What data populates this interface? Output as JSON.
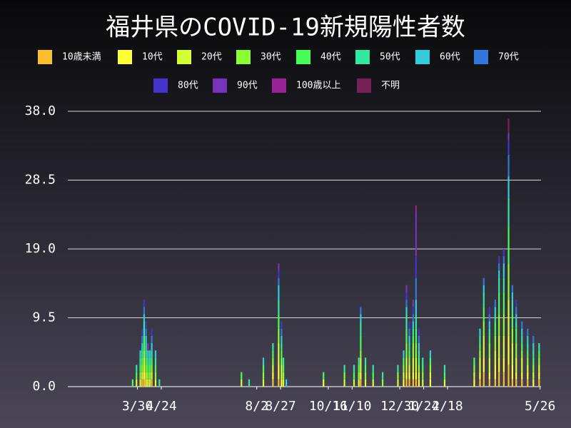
{
  "chart_data": {
    "type": "stacked_bar",
    "title": "福井県のCOVID-19新規陽性者数",
    "x": [
      68,
      72,
      76,
      78,
      80,
      82,
      84,
      86,
      88,
      92,
      96,
      182,
      190,
      205,
      215,
      221,
      224,
      226,
      229,
      268,
      290,
      300,
      305,
      307,
      312,
      320,
      330,
      346,
      352,
      355,
      358,
      362,
      365,
      368,
      372,
      380,
      395,
      426,
      432,
      436,
      442,
      448,
      452,
      457,
      462,
      466,
      470,
      476,
      482,
      488,
      494
    ],
    "xlim": [
      0,
      496
    ],
    "xticks": [
      {
        "value": 73,
        "label": "3/30"
      },
      {
        "value": 98,
        "label": "4/24"
      },
      {
        "value": 198,
        "label": "8/2"
      },
      {
        "value": 223,
        "label": "8/27"
      },
      {
        "value": 273,
        "label": "10/16"
      },
      {
        "value": 298,
        "label": "11/10"
      },
      {
        "value": 348,
        "label": "12/30"
      },
      {
        "value": 373,
        "label": "1/24"
      },
      {
        "value": 398,
        "label": "2/18"
      },
      {
        "value": 495,
        "label": "5/26"
      }
    ],
    "ylim": [
      0,
      38
    ],
    "yticks": [
      {
        "value": 0,
        "label": "0.0"
      },
      9.5,
      {
        "value": 19,
        "label": "19.0"
      },
      28.5,
      {
        "value": 38,
        "label": "38.0"
      }
    ],
    "grid": true,
    "series": [
      {
        "name": "10歳未満",
        "color": "#fbbf2c",
        "values": [
          0,
          0,
          0,
          1,
          1,
          0,
          0,
          0,
          1,
          0,
          0,
          0,
          0,
          0,
          1,
          1,
          0,
          0,
          0,
          0,
          0,
          0,
          0,
          1,
          0,
          0,
          0,
          0,
          0,
          1,
          1,
          1,
          1,
          0,
          0,
          0,
          0,
          0,
          1,
          2,
          1,
          1,
          2,
          2,
          3,
          1,
          1,
          1,
          1,
          0,
          1
        ]
      },
      {
        "name": "10代",
        "color": "#ffff33",
        "values": [
          0,
          0,
          0,
          0,
          1,
          1,
          0,
          0,
          0,
          0,
          0,
          0,
          0,
          0,
          1,
          2,
          1,
          0,
          0,
          1,
          0,
          0,
          0,
          1,
          0,
          0,
          0,
          0,
          1,
          1,
          1,
          1,
          1,
          1,
          0,
          1,
          0,
          1,
          1,
          2,
          1,
          2,
          2,
          2,
          4,
          2,
          1,
          1,
          1,
          1,
          1
        ]
      },
      {
        "name": "20代",
        "color": "#d4ff33",
        "values": [
          0,
          1,
          1,
          1,
          2,
          1,
          1,
          1,
          1,
          1,
          0,
          1,
          0,
          1,
          1,
          3,
          2,
          1,
          0,
          0,
          1,
          1,
          1,
          2,
          1,
          1,
          0,
          1,
          1,
          2,
          1,
          2,
          2,
          1,
          1,
          1,
          1,
          1,
          2,
          3,
          2,
          2,
          3,
          3,
          5,
          3,
          2,
          2,
          1,
          1,
          1
        ]
      },
      {
        "name": "30代",
        "color": "#88ff33",
        "values": [
          0,
          0,
          1,
          1,
          1,
          1,
          1,
          1,
          1,
          1,
          0,
          0,
          0,
          1,
          1,
          2,
          1,
          1,
          0,
          0,
          1,
          0,
          1,
          1,
          1,
          0,
          1,
          1,
          1,
          2,
          1,
          2,
          2,
          1,
          1,
          1,
          0,
          1,
          1,
          2,
          2,
          2,
          3,
          3,
          5,
          2,
          2,
          1,
          1,
          1,
          1
        ]
      },
      {
        "name": "40代",
        "color": "#44ff55",
        "values": [
          1,
          1,
          1,
          1,
          2,
          1,
          1,
          1,
          1,
          1,
          0,
          1,
          0,
          1,
          1,
          2,
          1,
          1,
          0,
          1,
          0,
          1,
          1,
          2,
          1,
          1,
          0,
          0,
          1,
          2,
          1,
          1,
          2,
          1,
          1,
          1,
          1,
          1,
          1,
          2,
          1,
          2,
          3,
          3,
          5,
          2,
          2,
          1,
          1,
          1,
          1
        ]
      },
      {
        "name": "50代",
        "color": "#33e8a0",
        "values": [
          0,
          1,
          1,
          1,
          2,
          2,
          1,
          1,
          1,
          1,
          1,
          0,
          1,
          0,
          1,
          2,
          1,
          1,
          0,
          0,
          1,
          1,
          1,
          2,
          1,
          1,
          1,
          1,
          0,
          2,
          1,
          1,
          2,
          1,
          1,
          0,
          1,
          0,
          1,
          2,
          1,
          1,
          2,
          2,
          4,
          2,
          1,
          1,
          1,
          1,
          1
        ]
      },
      {
        "name": "60代",
        "color": "#33ccdd",
        "values": [
          0,
          0,
          1,
          1,
          1,
          1,
          1,
          1,
          1,
          1,
          0,
          0,
          0,
          1,
          0,
          2,
          1,
          0,
          1,
          0,
          0,
          0,
          0,
          1,
          0,
          0,
          0,
          0,
          1,
          1,
          1,
          1,
          2,
          1,
          0,
          1,
          0,
          0,
          1,
          1,
          1,
          1,
          1,
          2,
          3,
          1,
          1,
          1,
          1,
          1,
          0
        ]
      },
      {
        "name": "70代",
        "color": "#3377dd",
        "values": [
          0,
          0,
          0,
          1,
          1,
          1,
          0,
          0,
          1,
          0,
          0,
          0,
          0,
          0,
          0,
          1,
          1,
          0,
          0,
          0,
          0,
          0,
          0,
          1,
          0,
          0,
          0,
          0,
          0,
          1,
          1,
          1,
          3,
          1,
          0,
          0,
          0,
          0,
          0,
          1,
          1,
          1,
          1,
          1,
          3,
          1,
          1,
          1,
          1,
          1,
          0
        ]
      },
      {
        "name": "80代",
        "color": "#4433cc",
        "values": [
          0,
          0,
          0,
          1,
          1,
          1,
          0,
          0,
          1,
          0,
          0,
          0,
          0,
          0,
          0,
          1,
          1,
          0,
          0,
          0,
          0,
          0,
          0,
          0,
          0,
          0,
          0,
          0,
          0,
          1,
          1,
          1,
          3,
          1,
          0,
          0,
          0,
          0,
          0,
          0,
          1,
          0,
          1,
          1,
          2,
          0,
          1,
          0,
          0,
          0,
          0
        ]
      },
      {
        "name": "90代",
        "color": "#7733bb",
        "values": [
          0,
          0,
          0,
          0,
          0,
          0,
          1,
          0,
          0,
          0,
          0,
          0,
          0,
          0,
          0,
          1,
          0,
          0,
          0,
          0,
          0,
          0,
          0,
          0,
          0,
          0,
          0,
          0,
          0,
          1,
          0,
          1,
          6,
          0,
          0,
          0,
          0,
          0,
          0,
          0,
          0,
          0,
          0,
          0,
          1,
          0,
          0,
          0,
          0,
          0,
          0
        ]
      },
      {
        "name": "100歳以上",
        "color": "#992299",
        "values": [
          0,
          0,
          0,
          0,
          0,
          0,
          0,
          0,
          0,
          0,
          0,
          0,
          0,
          0,
          0,
          0,
          0,
          0,
          0,
          0,
          0,
          0,
          0,
          0,
          0,
          0,
          0,
          0,
          0,
          0,
          0,
          0,
          1,
          0,
          0,
          0,
          0,
          0,
          0,
          0,
          0,
          0,
          0,
          0,
          0,
          0,
          0,
          0,
          0,
          0,
          0
        ]
      },
      {
        "name": "不明",
        "color": "#772255",
        "values": [
          0,
          0,
          0,
          0,
          0,
          0,
          0,
          0,
          0,
          0,
          0,
          0,
          0,
          0,
          0,
          0,
          0,
          0,
          0,
          0,
          0,
          0,
          0,
          0,
          0,
          0,
          0,
          0,
          0,
          0,
          0,
          0,
          0,
          0,
          0,
          0,
          0,
          0,
          0,
          0,
          0,
          0,
          0,
          0,
          2,
          0,
          0,
          0,
          0,
          0,
          0
        ]
      }
    ]
  }
}
